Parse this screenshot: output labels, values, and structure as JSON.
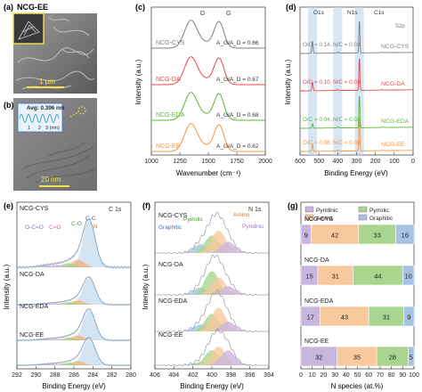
{
  "colors": {
    "cys": "#7f7f7f",
    "da": "#e8464b",
    "eda": "#5cb536",
    "ee": "#f4943f",
    "c_curve": "#7fb2dd",
    "c_fill": "#d3e4f3",
    "pyridinic": "#c9b6dd",
    "amino": "#f8c99c",
    "pyrrolic": "#a9d58e",
    "graphitic": "#a6c3e3",
    "band": "#c5dcef"
  },
  "icons": [
    "leaf-micrograph",
    "tem-lattice-fringes"
  ],
  "panels": {
    "a": {
      "letter": "(a)",
      "sample": "NCG-EE",
      "scale": "1 μm"
    },
    "b": {
      "letter": "(b)",
      "inset_text": "Avg: 0.396 nm",
      "inset_ticks": [
        "1",
        "2",
        "3 (nm)"
      ],
      "scale": "20 nm"
    },
    "c": {
      "letter": "(c)",
      "xlabel": "Wavenumber (cm⁻¹)",
      "ylabel": "Intensity (a.u.)",
      "peak_d": "D",
      "peak_g": "G"
    },
    "d": {
      "letter": "(d)",
      "xlabel": "Binding Energy (eV)",
      "ylabel": "Intensity (a.u.)",
      "o1s": "O1s",
      "n1s": "N1s",
      "c1s": "C1s",
      "s2p": "S2p"
    },
    "e": {
      "letter": "(e)",
      "xlabel": "Binding Energy (eV)",
      "ylabel": "Intensity (a.u.)",
      "tag": "C 1s",
      "comp_oco": "O-C=O",
      "comp_co_db": "C=O",
      "comp_co": "C-O",
      "comp_cn": "C-N",
      "comp_cc": "C-C"
    },
    "f": {
      "letter": "(f)",
      "xlabel": "Binding Energy (eV)",
      "ylabel": "Intensity (a.u.)",
      "tag": "N 1s",
      "comp_graphitic": "Graphitic",
      "comp_pyrrolic": "Pyrrolic",
      "comp_amino": "Amino",
      "comp_pyridinic": "Pyridinic"
    },
    "g": {
      "letter": "(g)",
      "xlabel": "N species (at.%)",
      "legend": [
        "Pyridinic",
        "Pyrrolic",
        "Amino",
        "Graphitic"
      ]
    }
  },
  "chart_data": [
    {
      "panel": "c",
      "type": "line",
      "xlabel": "Wavenumber (cm⁻¹)",
      "ylabel": "Intensity (a.u.)",
      "xlim": [
        1000,
        2000
      ],
      "xticks": [
        1000,
        1250,
        1500,
        1750,
        2000
      ],
      "series": [
        {
          "name": "NCG-CYS",
          "ratio": "A_G/A_D = 0.66"
        },
        {
          "name": "NCG-DA",
          "ratio": "A_G/A_D = 0.67"
        },
        {
          "name": "NCG-EDA",
          "ratio": "A_G/A_D = 0.68"
        },
        {
          "name": "NCG-EE",
          "ratio": "A_G/A_D = 0.62"
        }
      ]
    },
    {
      "panel": "d",
      "type": "line",
      "xlabel": "Binding Energy (eV)",
      "ylabel": "Intensity (a.u.)",
      "xlim": [
        600,
        0
      ],
      "xticks": [
        600,
        500,
        400,
        300,
        200,
        100,
        0
      ],
      "series": [
        {
          "name": "NCG-CYS",
          "note": "O/C = 0.14, N/C = 0.03"
        },
        {
          "name": "NCG-DA",
          "note": "O/C = 0.10, N/C = 0.03"
        },
        {
          "name": "NCG-EDA",
          "note": "O/C = 0.04, N/C = 0.03"
        },
        {
          "name": "NCG-EE",
          "note": "O/C = 0.08, N/C = 0.03"
        }
      ]
    },
    {
      "panel": "e",
      "type": "line",
      "xlabel": "Binding Energy (eV)",
      "xlim": [
        292,
        280
      ],
      "xticks": [
        292,
        290,
        288,
        286,
        284,
        282,
        280
      ],
      "series": [
        {
          "name": "NCG-CYS"
        },
        {
          "name": "NCG-DA"
        },
        {
          "name": "NCG-EDA"
        },
        {
          "name": "NCG-EE"
        }
      ]
    },
    {
      "panel": "f",
      "type": "line",
      "xlabel": "Binding Energy (eV)",
      "xlim": [
        406,
        394
      ],
      "xticks": [
        406,
        404,
        402,
        400,
        398,
        396,
        394
      ],
      "series": [
        {
          "name": "NCG-CYS"
        },
        {
          "name": "NCG-DA"
        },
        {
          "name": "NCG-EDA"
        },
        {
          "name": "NCG-EE"
        }
      ]
    },
    {
      "panel": "g",
      "type": "bar",
      "xlabel": "N species (at.%)",
      "xlim": [
        0,
        100
      ],
      "xticks": [
        0,
        10,
        20,
        30,
        40,
        50,
        60,
        70,
        80,
        90,
        100
      ],
      "stack_order": [
        "Pyridinic",
        "Amino",
        "Pyrrolic",
        "Graphitic"
      ],
      "categories": [
        "NCG-CYS",
        "NCG-DA",
        "NCG-EDA",
        "NCG-EE"
      ],
      "series": [
        {
          "name": "Pyridinic",
          "values": [
            9,
            15,
            17,
            32
          ]
        },
        {
          "name": "Amino",
          "values": [
            42,
            31,
            43,
            35
          ]
        },
        {
          "name": "Pyrrolic",
          "values": [
            33,
            44,
            31,
            28
          ]
        },
        {
          "name": "Graphitic",
          "values": [
            16,
            10,
            9,
            5
          ]
        }
      ]
    }
  ]
}
